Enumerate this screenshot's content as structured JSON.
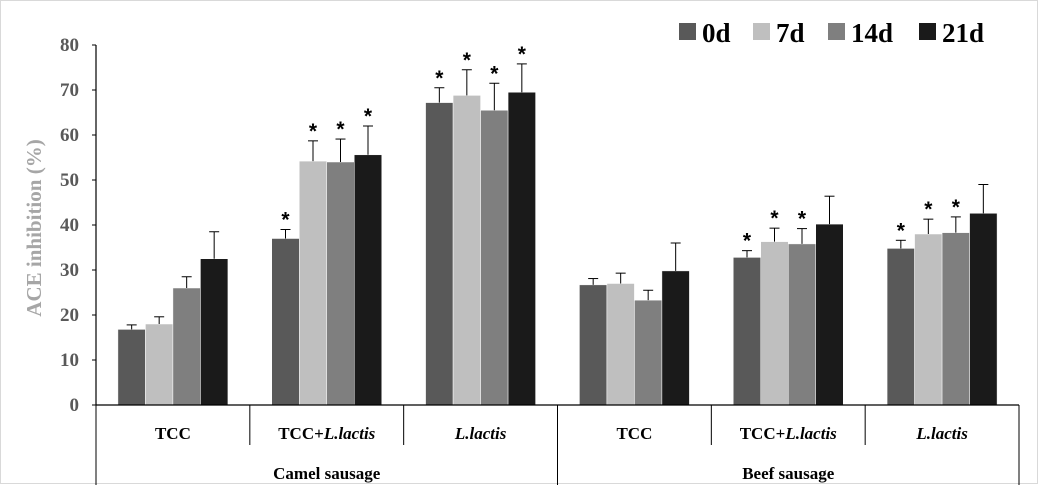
{
  "chart_data": {
    "type": "bar",
    "title": "",
    "ylabel": "ACE inhibition (%)",
    "xlabel": "",
    "ylim": [
      0,
      80
    ],
    "yticks": [
      "0",
      "10",
      "20",
      "30",
      "40",
      "50",
      "60",
      "70",
      "80"
    ],
    "grid": false,
    "legend_position": "top-right",
    "groups": [
      {
        "label": "Camel sausage",
        "categories": [
          "TCC",
          "TCC+L.lactis",
          "L.lactis"
        ]
      },
      {
        "label": "Beef sausage",
        "categories": [
          "TCC",
          "TCC+L.lactis",
          "L.lactis"
        ]
      }
    ],
    "category_labels": [
      {
        "prefix": "TCC",
        "italic": ""
      },
      {
        "prefix": "TCC+",
        "italic": "L.lactis"
      },
      {
        "prefix": "",
        "italic": "L.lactis"
      },
      {
        "prefix": "TCC",
        "italic": ""
      },
      {
        "prefix": "TCC+",
        "italic": "L.lactis"
      },
      {
        "prefix": "",
        "italic": "L.lactis"
      }
    ],
    "series": [
      {
        "name": "0d",
        "color": "#595959",
        "values": [
          16.8,
          37.0,
          67.2,
          26.7,
          32.8,
          34.8
        ],
        "errors": [
          1.0,
          2.0,
          3.3,
          1.4,
          1.5,
          1.8
        ],
        "significant": [
          false,
          true,
          true,
          false,
          true,
          true
        ]
      },
      {
        "name": "7d",
        "color": "#bfbfbf",
        "values": [
          18.0,
          54.2,
          68.8,
          27.0,
          36.3,
          38.0
        ],
        "errors": [
          1.6,
          4.5,
          5.7,
          2.3,
          3.0,
          3.3
        ],
        "significant": [
          false,
          true,
          true,
          false,
          true,
          true
        ]
      },
      {
        "name": "14d",
        "color": "#7f7f7f",
        "values": [
          26.0,
          54.0,
          65.5,
          23.3,
          35.8,
          38.3
        ],
        "errors": [
          2.5,
          5.1,
          6.0,
          2.2,
          3.4,
          3.5
        ],
        "significant": [
          false,
          true,
          true,
          false,
          true,
          true
        ]
      },
      {
        "name": "21d",
        "color": "#1a1a1a",
        "values": [
          32.5,
          55.6,
          69.5,
          29.8,
          40.2,
          42.6
        ],
        "errors": [
          6.0,
          6.4,
          6.3,
          6.2,
          6.2,
          6.4
        ],
        "significant": [
          false,
          true,
          true,
          false,
          false,
          false
        ]
      }
    ],
    "significance_marker": "*"
  }
}
